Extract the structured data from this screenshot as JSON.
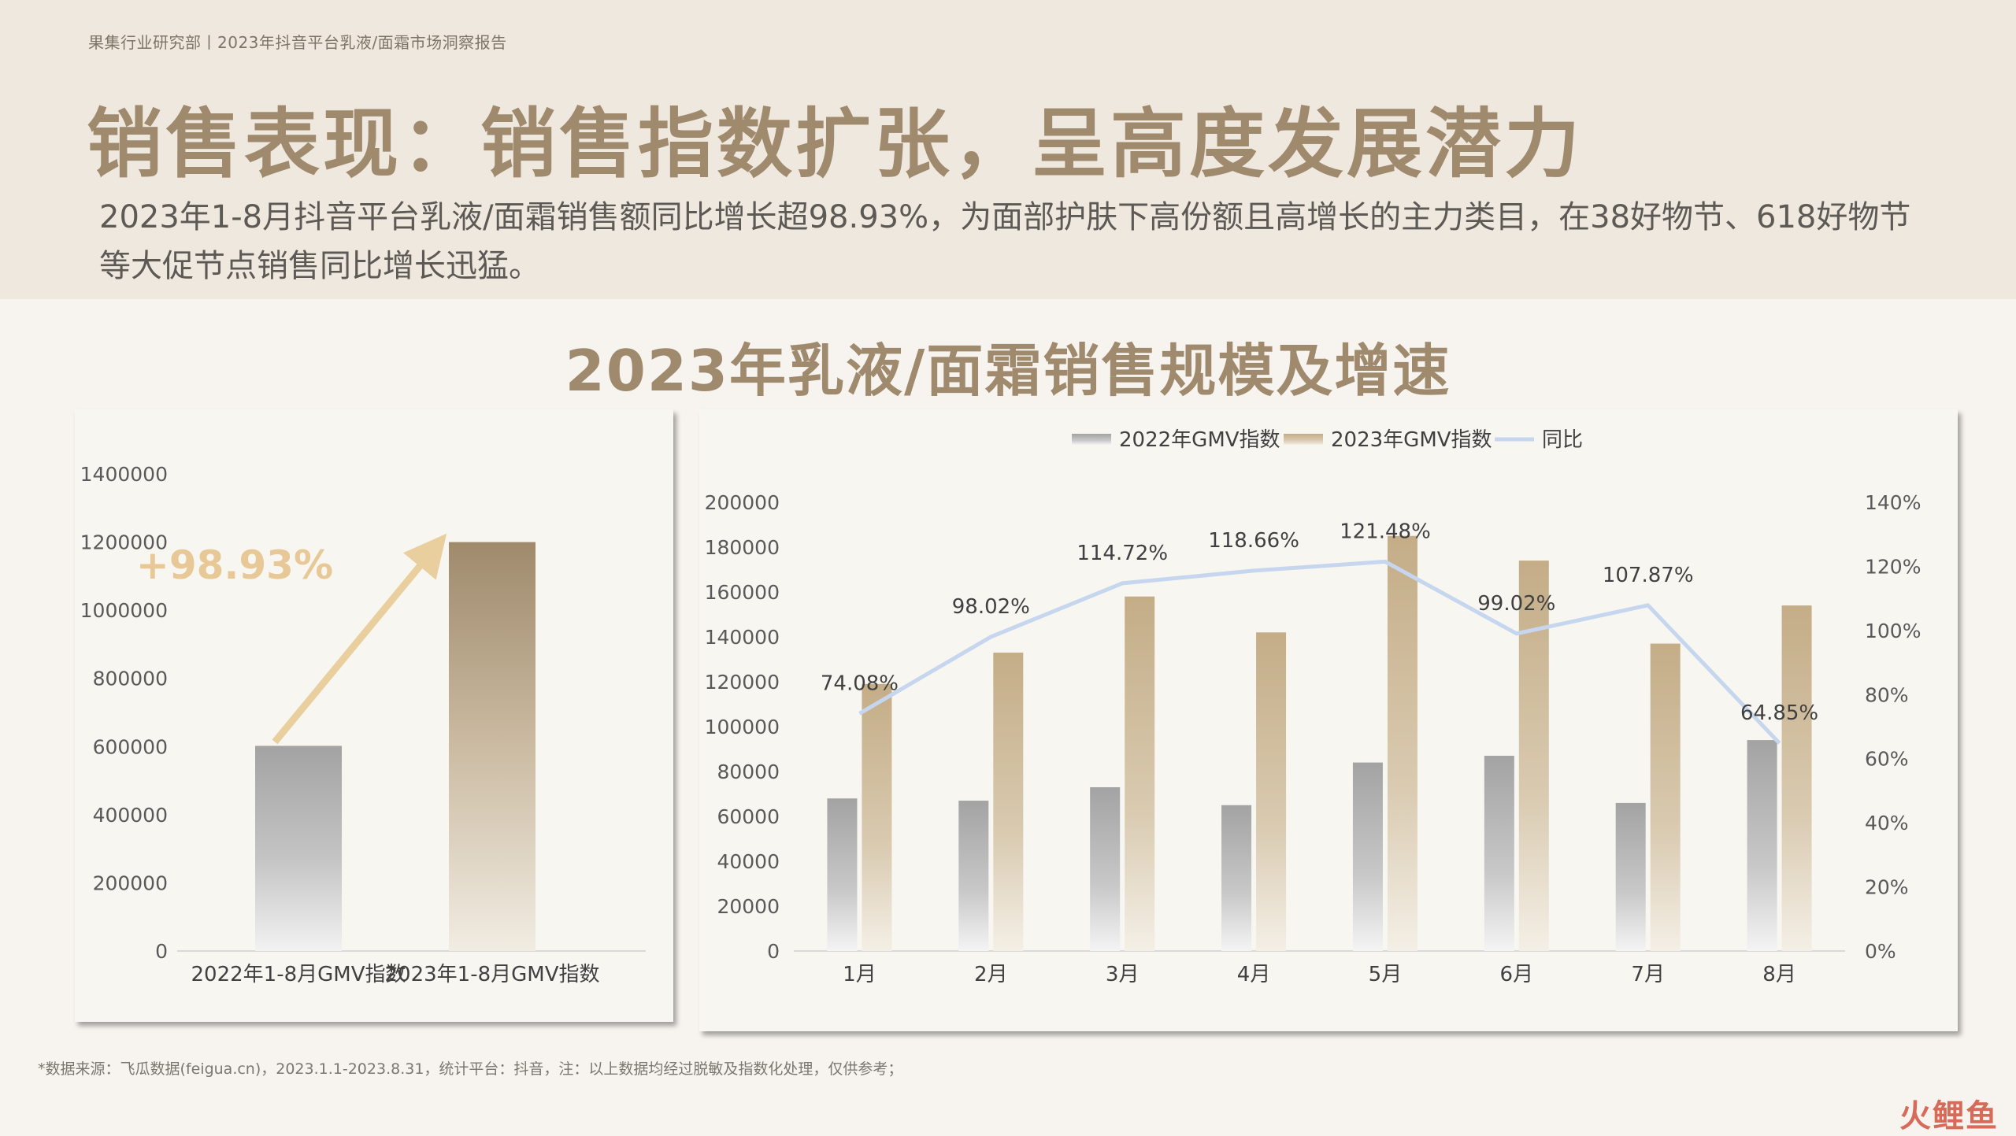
{
  "header": {
    "breadcrumb": "果集行业研究部丨2023年抖音平台乳液/面霜市场洞察报告",
    "title": "销售表现：销售指数扩张，呈高度发展潜力",
    "subtitle": "2023年1-8月抖音平台乳液/面霜销售额同比增长超98.93%，为面部护肤下高份额且高增长的主力类目，在38好物节、618好物节等大促节点销售同比增长迅猛。"
  },
  "chart_title": "2023年乳液/面霜销售规模及增速",
  "footnote": "*数据来源：飞瓜数据(feigua.cn)，2023.1.1-2023.8.31，统计平台：抖音，注：以上数据均经过脱敏及指数化处理，仅供参考；",
  "watermark": "火鲤鱼",
  "colors": {
    "gray_bar": "#a3a3a3",
    "tan_bar": "#c5ae88",
    "line": "#c5d6ee",
    "growth_arrow": "#e9cf9e",
    "growth_label": "#e8c896",
    "title_brown": "#9f8a6e"
  },
  "chart_data": [
    {
      "type": "bar",
      "categories": [
        "2022年1-8月GMV指数",
        "2023年1-8月GMV指数"
      ],
      "values": [
        602000,
        1200000
      ],
      "ylim": [
        0,
        1400000
      ],
      "yticks": [
        "0",
        "200000",
        "400000",
        "600000",
        "800000",
        "1000000",
        "1200000",
        "1400000"
      ],
      "annotation": "+98.93%"
    },
    {
      "type": "bar",
      "categories": [
        "1月",
        "2月",
        "3月",
        "4月",
        "5月",
        "6月",
        "7月",
        "8月"
      ],
      "series": [
        {
          "name": "2022年GMV指数",
          "type": "bar",
          "values": [
            68000,
            67000,
            73000,
            65000,
            84000,
            87000,
            66000,
            94000
          ]
        },
        {
          "name": "2023年GMV指数",
          "type": "bar",
          "values": [
            119000,
            133000,
            158000,
            142000,
            185000,
            174000,
            137000,
            154000
          ]
        },
        {
          "name": "同比",
          "type": "line",
          "axis": "right",
          "values": [
            74.08,
            98.02,
            114.72,
            118.66,
            121.48,
            99.02,
            107.87,
            64.85
          ],
          "labels": [
            "74.08%",
            "98.02%",
            "114.72%",
            "118.66%",
            "121.48%",
            "99.02%",
            "107.87%",
            "64.85%"
          ]
        }
      ],
      "ylim": [
        0,
        200000
      ],
      "y2lim": [
        0,
        140
      ],
      "yticks": [
        "0",
        "20000",
        "40000",
        "60000",
        "80000",
        "100000",
        "120000",
        "140000",
        "160000",
        "180000",
        "200000"
      ],
      "y2ticks": [
        "0%",
        "20%",
        "40%",
        "60%",
        "80%",
        "100%",
        "120%",
        "140%"
      ],
      "legend_position": "top"
    }
  ]
}
